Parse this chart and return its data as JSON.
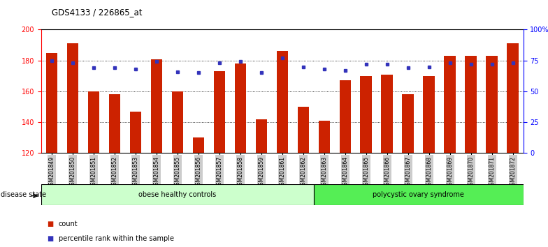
{
  "title": "GDS4133 / 226865_at",
  "samples": [
    "GSM201849",
    "GSM201850",
    "GSM201851",
    "GSM201852",
    "GSM201853",
    "GSM201854",
    "GSM201855",
    "GSM201856",
    "GSM201857",
    "GSM201858",
    "GSM201859",
    "GSM201861",
    "GSM201862",
    "GSM201863",
    "GSM201864",
    "GSM201865",
    "GSM201866",
    "GSM201867",
    "GSM201868",
    "GSM201869",
    "GSM201870",
    "GSM201871",
    "GSM201872"
  ],
  "bar_values": [
    185,
    191,
    160,
    158,
    147,
    181,
    160,
    130,
    173,
    178,
    142,
    186,
    150,
    141,
    167,
    170,
    171,
    158,
    170,
    183,
    183,
    183,
    191
  ],
  "percentile_values": [
    75,
    73,
    69,
    69,
    68,
    74,
    66,
    65,
    73,
    74,
    65,
    77,
    70,
    68,
    67,
    72,
    72,
    69,
    70,
    73,
    72,
    72,
    73
  ],
  "ylim_left": [
    120,
    200
  ],
  "ylim_right": [
    0,
    100
  ],
  "yticks_left": [
    120,
    140,
    160,
    180,
    200
  ],
  "yticks_right": [
    0,
    25,
    50,
    75,
    100
  ],
  "ytick_labels_right": [
    "0",
    "25",
    "50",
    "75",
    "100%"
  ],
  "bar_color": "#cc2200",
  "percentile_color": "#3333bb",
  "grid_color": "#000000",
  "background_color": "#ffffff",
  "group1_label": "obese healthy controls",
  "group2_label": "polycystic ovary syndrome",
  "group1_color": "#ccffcc",
  "group2_color": "#55ee55",
  "group1_count": 13,
  "group2_count": 10,
  "disease_state_label": "disease state",
  "legend_count_label": "count",
  "legend_percentile_label": "percentile rank within the sample",
  "tick_bg_color": "#cccccc"
}
